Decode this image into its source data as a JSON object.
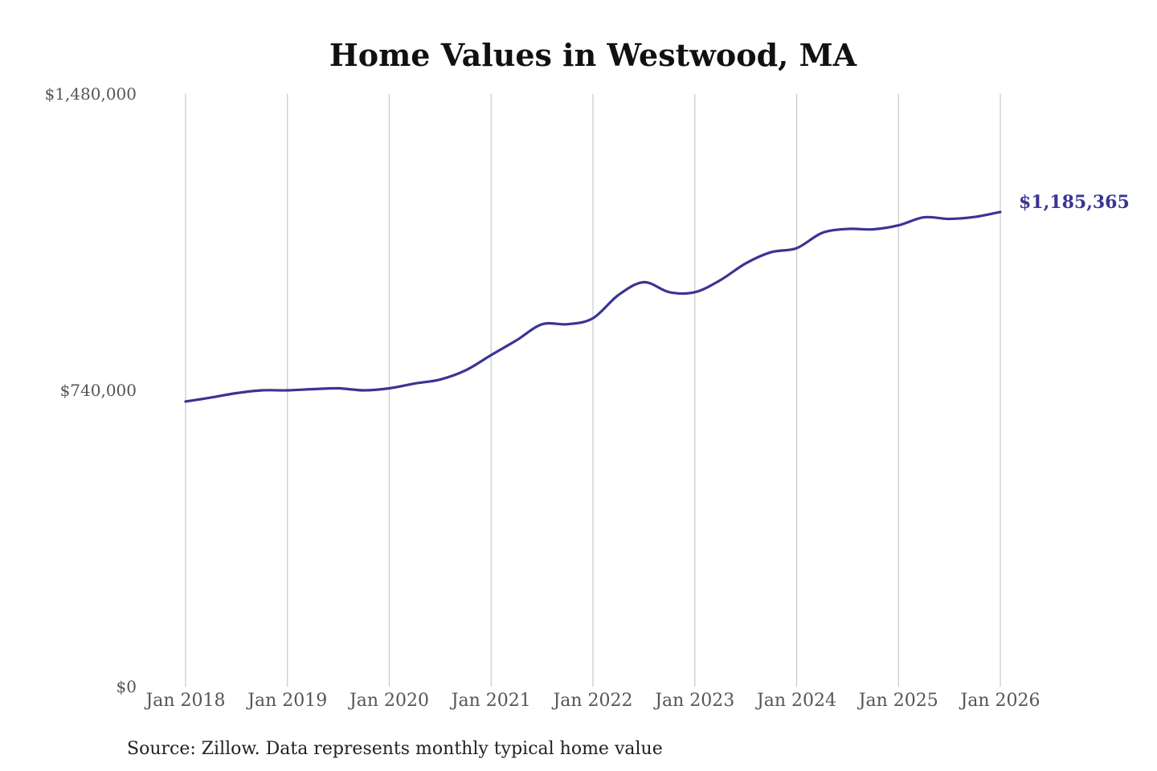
{
  "chart_data": {
    "type": "line",
    "title": "Home Values in Westwood, MA",
    "xlabel": "",
    "ylabel": "",
    "ylim": [
      0,
      1480000
    ],
    "xlim": [
      "2018-01",
      "2026-01"
    ],
    "y_ticks": [
      "$1,480,000",
      "$740,000",
      "$0"
    ],
    "y_tick_values": [
      1480000,
      740000,
      0
    ],
    "x_ticks": [
      "Jan 2018",
      "Jan 2019",
      "Jan 2020",
      "Jan 2021",
      "Jan 2022",
      "Jan 2023",
      "Jan 2024",
      "Jan 2025",
      "Jan 2026"
    ],
    "x_tick_values": [
      "2018-01",
      "2019-01",
      "2020-01",
      "2021-01",
      "2022-01",
      "2023-01",
      "2024-01",
      "2025-01",
      "2026-01"
    ],
    "grid": "vertical",
    "line_color": "#3a3493",
    "end_label": "$1,185,365",
    "series": [
      {
        "x": [
          "2018-01",
          "2018-04",
          "2018-07",
          "2018-10",
          "2019-01",
          "2019-04",
          "2019-07",
          "2019-10",
          "2020-01",
          "2020-04",
          "2020-07",
          "2020-10",
          "2021-01",
          "2021-04",
          "2021-07",
          "2021-10",
          "2022-01",
          "2022-04",
          "2022-07",
          "2022-10",
          "2023-01",
          "2023-04",
          "2023-07",
          "2023-10",
          "2024-01",
          "2024-04",
          "2024-07",
          "2024-10",
          "2025-01",
          "2025-04",
          "2025-07",
          "2025-10",
          "2026-01"
        ],
        "y": [
          712000,
          722000,
          733000,
          740000,
          740000,
          743000,
          745000,
          740000,
          745000,
          757000,
          767000,
          790000,
          828000,
          865000,
          905000,
          905000,
          920000,
          978000,
          1010000,
          985000,
          985000,
          1015000,
          1057000,
          1085000,
          1095000,
          1133000,
          1143000,
          1142000,
          1152000,
          1172000,
          1168000,
          1173000,
          1185365
        ]
      }
    ]
  },
  "footer": {
    "source": "Source: Zillow. Data represents monthly typical home value"
  }
}
